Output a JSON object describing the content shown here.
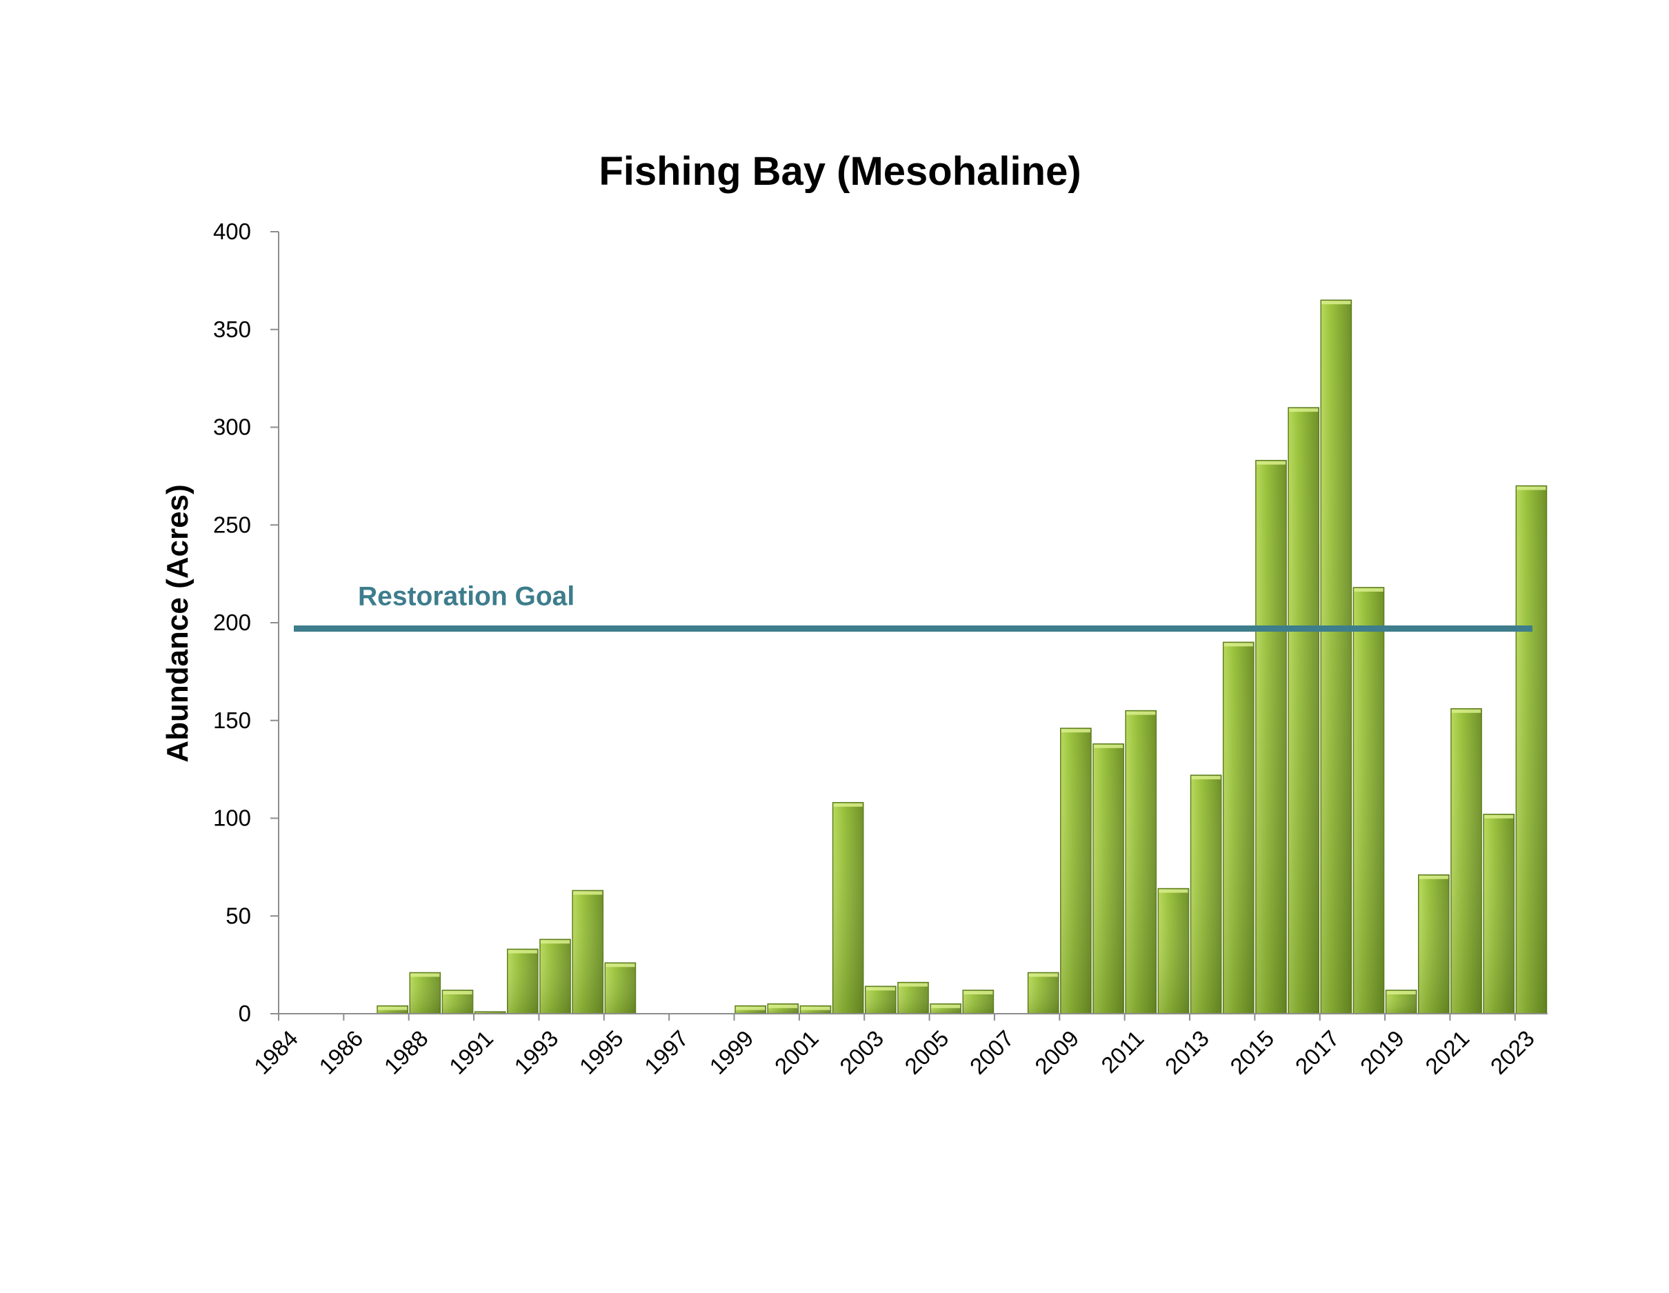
{
  "chart_data": {
    "type": "bar",
    "title": "Fishing Bay (Mesohaline)",
    "xlabel": "",
    "ylabel": "Abundance (Acres)",
    "ylim": [
      0,
      400
    ],
    "yticks": [
      0,
      50,
      100,
      150,
      200,
      250,
      300,
      350,
      400
    ],
    "categories": [
      "1984",
      "1985",
      "1986",
      "1987",
      "1988",
      "1989",
      "1991",
      "1992",
      "1993",
      "1994",
      "1995",
      "1996",
      "1997",
      "1998",
      "1999",
      "2000",
      "2001",
      "2002",
      "2003",
      "2004",
      "2005",
      "2006",
      "2007",
      "2008",
      "2009",
      "2010",
      "2011",
      "2012",
      "2013",
      "2014",
      "2015",
      "2016",
      "2017",
      "2018",
      "2019",
      "2020",
      "2021",
      "2022",
      "2023"
    ],
    "visible_tick_labels": [
      "1984",
      "1986",
      "1988",
      "1991",
      "1993",
      "1995",
      "1997",
      "1999",
      "2001",
      "2003",
      "2005",
      "2007",
      "2009",
      "2011",
      "2013",
      "2015",
      "2017",
      "2019",
      "2021",
      "2023"
    ],
    "series": [
      {
        "values": [
          0,
          0,
          0,
          4,
          21,
          12,
          1,
          33,
          38,
          63,
          26,
          0,
          0,
          0,
          4,
          5,
          4,
          108,
          14,
          16,
          5,
          12,
          0,
          21,
          146,
          138,
          155,
          64,
          122,
          190,
          283,
          310,
          365,
          218,
          12,
          71,
          156,
          102,
          270
        ]
      }
    ],
    "reference_line": {
      "label": "Restoration Goal",
      "value": 197
    },
    "grid": false,
    "legend": "none",
    "colors": {
      "bar_light": "#b8d95a",
      "bar_mid": "#99c13c",
      "bar_dark": "#6f9028",
      "bar_edge": "#5e7d1f",
      "goal_line": "#3d7d8c",
      "axis": "#8c8c8c"
    }
  }
}
